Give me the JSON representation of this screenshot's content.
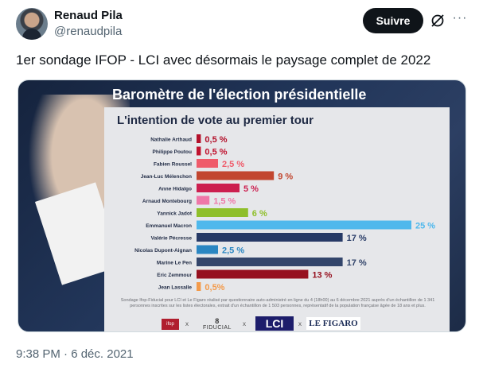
{
  "author": {
    "name": "Renaud Pila",
    "handle": "@renaudpila",
    "follow_label": "Suivre",
    "grok_icon": "grok-icon",
    "more_icon": "more-icon"
  },
  "tweet": {
    "text": "1er sondage IFOP - LCI avec désormais le paysage complet de 2022",
    "timestamp": "9:38 PM · 6 déc. 2021"
  },
  "chart_data": {
    "type": "bar",
    "orientation": "horizontal",
    "title": "Baromètre de l'élection présidentielle",
    "subtitle": "L'intention de vote au premier tour",
    "unit": "%",
    "xlim": [
      0,
      25
    ],
    "categories": [
      "Nathalie Arthaud",
      "Philippe Poutou",
      "Fabien Roussel",
      "Jean-Luc Mélenchon",
      "Anne Hidalgo",
      "Arnaud Montebourg",
      "Yannick Jadot",
      "Emmanuel Macron",
      "Valérie Pécresse",
      "Nicolas Dupont-Aignan",
      "Marine Le Pen",
      "Eric Zemmour",
      "Jean Lassalle"
    ],
    "values": [
      0.5,
      0.5,
      2.5,
      9,
      5,
      1.5,
      6,
      25,
      17,
      2.5,
      17,
      13,
      0.5
    ],
    "labels": [
      "0,5 %",
      "0,5 %",
      "2,5 %",
      "9 %",
      "5 %",
      "1,5 %",
      "6 %",
      "25 %",
      "17 %",
      "2,5 %",
      "17 %",
      "13 %",
      "0,5%"
    ],
    "colors": [
      "#b3102a",
      "#c0122e",
      "#ef5b6a",
      "#c2462f",
      "#cc1f4f",
      "#ef77a8",
      "#8fbf2a",
      "#4fb8ec",
      "#273a66",
      "#2a86c2",
      "#33456b",
      "#96101f",
      "#f39a4a"
    ],
    "label_colors": [
      "#b3102a",
      "#c0122e",
      "#ef5b6a",
      "#c2462f",
      "#cc1f4f",
      "#ef77a8",
      "#8fbf2a",
      "#4fb8ec",
      "#273a66",
      "#2a86c2",
      "#33456b",
      "#96101f",
      "#f39a4a"
    ],
    "source": "Sondage Ifop-Fiducial pour LCI et Le Figaro réalisé par questionnaire auto-administré en ligne du 4 (18h00) au 6 décembre 2021 auprès d'un échantillon de 1 341 personnes inscrites sur les listes électorales, extrait d'un échantillon de 1 503 personnes, représentatif de la population française âgée de 18 ans et plus."
  },
  "logos": {
    "ifop": "ifop",
    "fiducial": "FIDUCIAL",
    "lci": "LCI",
    "figaro": "LE FIGARO",
    "separator": "x"
  }
}
